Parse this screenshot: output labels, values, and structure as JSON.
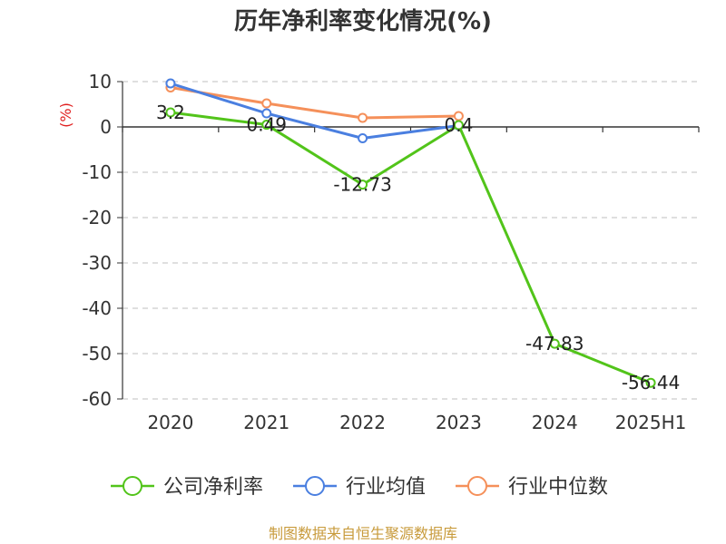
{
  "chart_data": {
    "type": "line",
    "title": "历年净利率变化情况(%)",
    "ylabel": "(%)",
    "xlabel": "",
    "categories": [
      "2020",
      "2021",
      "2022",
      "2023",
      "2024",
      "2025H1"
    ],
    "ylim": [
      -60,
      10
    ],
    "yticks": [
      "10",
      "0",
      "-10",
      "-20",
      "-30",
      "-40",
      "-50",
      "-60"
    ],
    "grid": true,
    "legend_position": "bottom",
    "series": [
      {
        "name": "公司净利率",
        "color": "#52c41a",
        "values": [
          3.2,
          0.49,
          -12.73,
          0.4,
          -47.83,
          -56.44
        ],
        "labels": [
          "3.2",
          "0.49",
          "-12.73",
          "0.4",
          "-47.83",
          "-56.44"
        ]
      },
      {
        "name": "行业均值",
        "color": "#4a7fe0",
        "values": [
          9.6,
          3.0,
          -2.5,
          0.3,
          null,
          null
        ]
      },
      {
        "name": "行业中位数",
        "color": "#f5905a",
        "values": [
          8.7,
          5.2,
          2.0,
          2.4,
          null,
          null
        ]
      }
    ],
    "source": "制图数据来自恒生聚源数据库"
  }
}
